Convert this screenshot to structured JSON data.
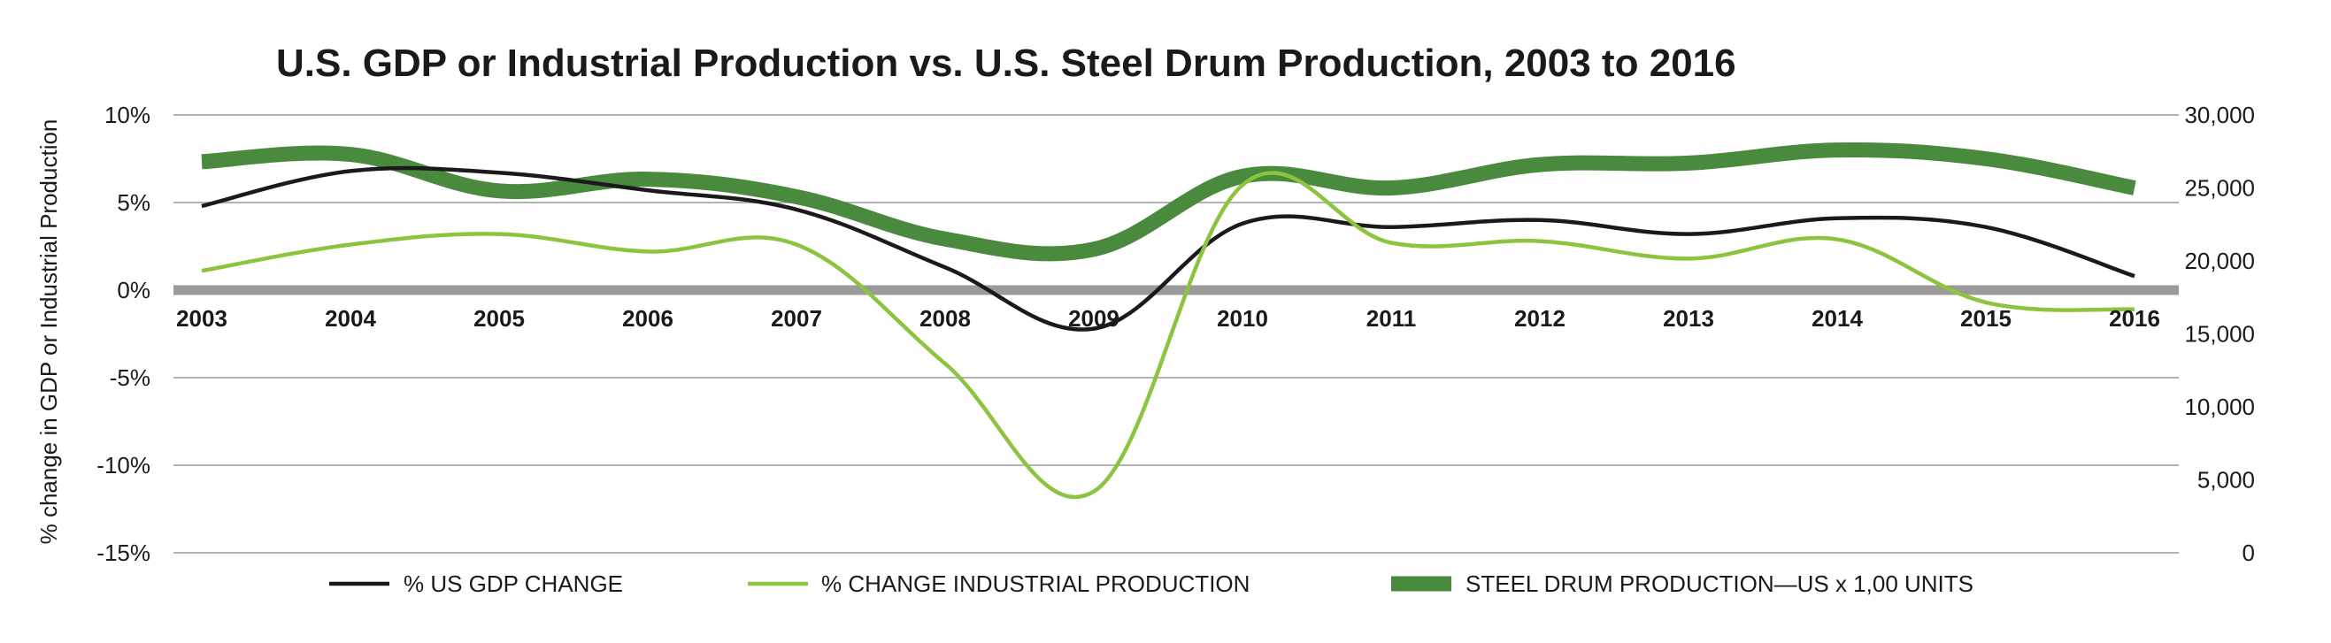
{
  "chart_data": {
    "type": "line",
    "title": "U.S. GDP or Industrial Production vs. U.S. Steel Drum Production, 2003 to 2016",
    "ylabel": "% change in GDP or Industrial Production",
    "x": [
      "2003",
      "2004",
      "2005",
      "2006",
      "2007",
      "2008",
      "2009",
      "2010",
      "2011",
      "2012",
      "2013",
      "2014",
      "2015",
      "2016"
    ],
    "y_left": {
      "ticks": [
        "10%",
        "5%",
        "0%",
        "-5%",
        "-10%",
        "-15%"
      ],
      "tick_values": [
        10,
        5,
        0,
        -5,
        -10,
        -15
      ],
      "ylim": [
        -15,
        10
      ]
    },
    "y_right": {
      "ticks": [
        "30,000",
        "25,000",
        "20,000",
        "15,000",
        "10,000",
        "5,000",
        "0"
      ],
      "tick_values": [
        30000,
        25000,
        20000,
        15000,
        10000,
        5000,
        0
      ],
      "ylim": [
        0,
        30000
      ]
    },
    "series": [
      {
        "name": "% US GDP CHANGE",
        "axis": "left",
        "color": "#1a1a1a",
        "values": [
          4.8,
          6.8,
          6.7,
          5.7,
          4.6,
          1.3,
          -2.2,
          3.8,
          3.6,
          4.0,
          3.2,
          4.1,
          3.6,
          0.8
        ]
      },
      {
        "name": "% CHANGE INDUSTRIAL PRODUCTION",
        "axis": "left",
        "color": "#8cc43f",
        "values": [
          1.1,
          2.6,
          3.2,
          2.2,
          2.6,
          -4.2,
          -11.5,
          6.0,
          2.7,
          2.8,
          1.8,
          2.9,
          -0.7,
          -1.1
        ]
      },
      {
        "name": "STEEL DRUM PRODUCTION—US x 1,00 UNITS",
        "axis": "right",
        "color": "#4a8a3e",
        "values": [
          26800,
          27300,
          24800,
          25600,
          24400,
          21500,
          20800,
          25800,
          25000,
          26600,
          26700,
          27600,
          27000,
          25000
        ]
      }
    ],
    "grid": true,
    "legend_position": "bottom"
  }
}
